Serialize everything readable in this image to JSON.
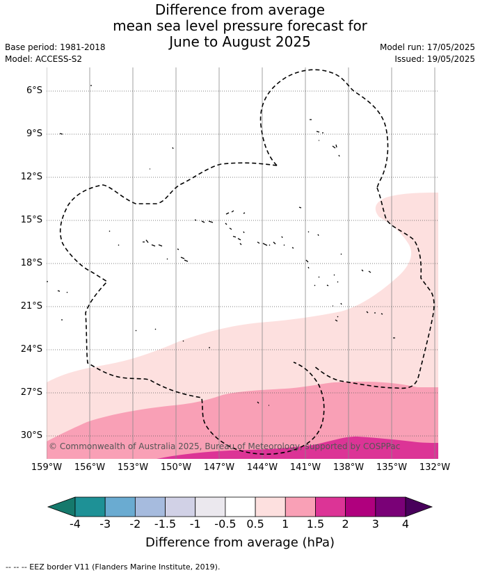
{
  "title": {
    "line1": "Difference from average",
    "line2": "mean sea level pressure forecast for",
    "line3": "June to August 2025"
  },
  "meta": {
    "base_period": "Base period: 1981-2018",
    "model": "Model: ACCESS-S2",
    "model_run": "Model run: 17/05/2025",
    "issued": "Issued: 19/05/2025"
  },
  "map": {
    "lat_labels": [
      "6°S",
      "9°S",
      "12°S",
      "15°S",
      "18°S",
      "21°S",
      "24°S",
      "27°S",
      "30°S"
    ],
    "lon_labels": [
      "159°W",
      "156°W",
      "153°W",
      "150°W",
      "147°W",
      "144°W",
      "141°W",
      "138°W",
      "135°W",
      "132°W"
    ],
    "copyright": "© Commonwealth of Australia 2025, Bureau of Meteorology, supported by COSPPac",
    "fill_colors": {
      "band_0_5_to_1": "#fde0df",
      "band_1_to_1_5": "#f9a0b6",
      "band_1_5_to_2": "#dc3496"
    }
  },
  "colorbar": {
    "label": "Difference from average (hPa)",
    "ticks": [
      "-4",
      "-3",
      "-2",
      "-1.5",
      "-1",
      "-0.5",
      "0.5",
      "1",
      "1.5",
      "2",
      "3",
      "4"
    ],
    "colors": [
      "#15796c",
      "#1e9196",
      "#6aabd1",
      "#a6bbde",
      "#d1d1e6",
      "#ebe8ee",
      "#ffffff",
      "#fde0df",
      "#f9a0b6",
      "#dc3496",
      "#b0007e",
      "#7a0177",
      "#48005b"
    ]
  },
  "footer": {
    "legend": "--  --  -- EEZ border V11 (Flanders Marine Institute, 2019)."
  }
}
